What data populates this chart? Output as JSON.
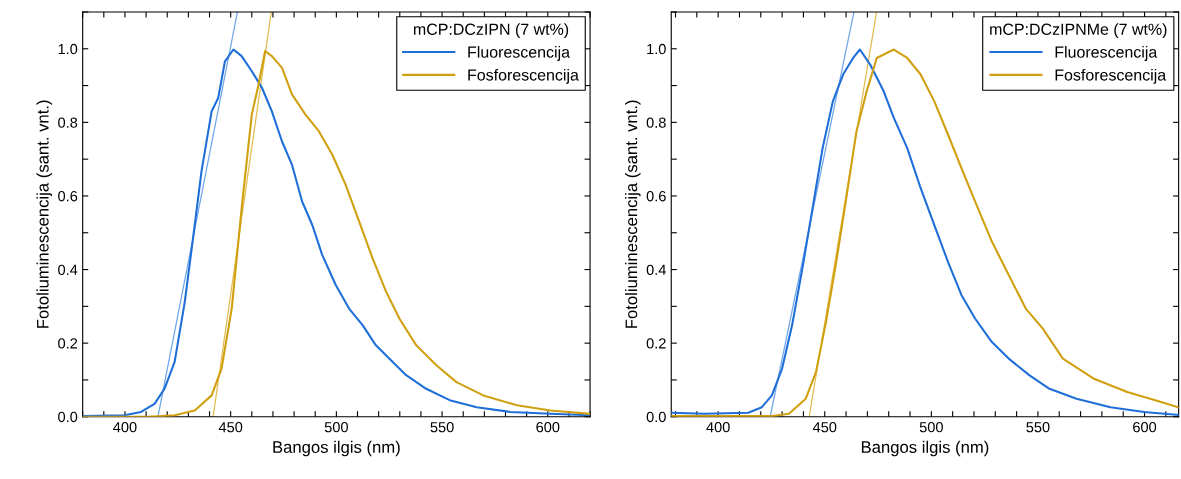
{
  "chart_data": [
    {
      "type": "line",
      "xlabel": "Bangos ilgis (nm)",
      "ylabel": "Fotoliuminescencija (sant. vnt.)",
      "legend_title": "mCP:DCzIPN (7 wt%)",
      "legend": "top right",
      "grid": false,
      "xlim": [
        380,
        620
      ],
      "ylim": [
        0,
        1.1
      ],
      "xticks": [
        {
          "value": 380,
          "label": null
        },
        {
          "value": 390,
          "label": null
        },
        400,
        {
          "value": 410,
          "label": null
        },
        {
          "value": 420,
          "label": null
        },
        {
          "value": 430,
          "label": null
        },
        {
          "value": 440,
          "label": null
        },
        450,
        {
          "value": 460,
          "label": null
        },
        {
          "value": 470,
          "label": null
        },
        {
          "value": 480,
          "label": null
        },
        {
          "value": 490,
          "label": null
        },
        500,
        {
          "value": 510,
          "label": null
        },
        {
          "value": 520,
          "label": null
        },
        {
          "value": 530,
          "label": null
        },
        {
          "value": 540,
          "label": null
        },
        550,
        {
          "value": 560,
          "label": null
        },
        {
          "value": 570,
          "label": null
        },
        {
          "value": 580,
          "label": null
        },
        {
          "value": 590,
          "label": null
        },
        600,
        {
          "value": 610,
          "label": null
        },
        {
          "value": 620,
          "label": null
        }
      ],
      "yticks": [
        {
          "value": 0,
          "label": "0.0"
        },
        {
          "value": 0.1,
          "label": null
        },
        0.2,
        {
          "value": 0.3,
          "label": null
        },
        0.4,
        {
          "value": 0.5,
          "label": null
        },
        0.6,
        {
          "value": 0.7,
          "label": null
        },
        0.8,
        {
          "value": 0.9,
          "label": null
        },
        {
          "value": 1,
          "label": "1.0"
        },
        {
          "value": 1.1,
          "label": null
        }
      ],
      "series": [
        {
          "name": "Fluorescencija",
          "color": "#1f6fd8",
          "x": [
            380,
            399.7,
            407.6,
            414,
            418.7,
            423.5,
            428.3,
            433,
            436.2,
            441,
            444.1,
            447.3,
            451.3,
            455.2,
            460,
            464.8,
            469.5,
            474.3,
            479,
            483.8,
            488.6,
            493.3,
            499.7,
            506,
            512.4,
            518.7,
            525,
            533,
            542.5,
            553.6,
            566.4,
            582.2,
            601.3,
            619.5
          ],
          "values": [
            0.002,
            0.004,
            0.013,
            0.035,
            0.076,
            0.149,
            0.312,
            0.521,
            0.667,
            0.83,
            0.866,
            0.966,
            0.998,
            0.98,
            0.939,
            0.894,
            0.83,
            0.748,
            0.685,
            0.585,
            0.521,
            0.44,
            0.358,
            0.294,
            0.249,
            0.194,
            0.158,
            0.113,
            0.076,
            0.045,
            0.026,
            0.013,
            0.008,
            0.004
          ]
        },
        {
          "name": "Fosforescencija",
          "color": "#d0a010",
          "x": [
            380,
            410.8,
            423.5,
            433,
            441,
            445.7,
            450.5,
            455.2,
            460,
            463.2,
            466.3,
            469.5,
            474.3,
            479,
            485.4,
            491.7,
            498.1,
            504.4,
            510.8,
            517.1,
            523.5,
            529.8,
            537.8,
            547.3,
            556.8,
            569.5,
            585.4,
            601.3,
            619.5
          ],
          "values": [
            0,
            0,
            0.004,
            0.017,
            0.058,
            0.131,
            0.294,
            0.567,
            0.821,
            0.903,
            0.994,
            0.98,
            0.948,
            0.876,
            0.821,
            0.776,
            0.712,
            0.63,
            0.53,
            0.431,
            0.34,
            0.267,
            0.194,
            0.14,
            0.094,
            0.058,
            0.031,
            0.017,
            0.008
          ]
        },
        {
          "color": "#6fa6ea",
          "x": [
            415.6,
            453.2
          ],
          "values": [
            0,
            1.1
          ]
        },
        {
          "color": "#e2bc4e",
          "x": [
            441.7,
            469.2
          ],
          "values": [
            0,
            1.1
          ]
        }
      ]
    },
    {
      "type": "line",
      "xlabel": "Bangos ilgis (nm)",
      "ylabel": "Fotoliuminescencija (sant. vnt.)",
      "legend_title": "mCP:DCzIPNMe (7 wt%)",
      "legend": "top right",
      "grid": false,
      "xlim": [
        378,
        616
      ],
      "ylim": [
        0,
        1.1
      ],
      "xticks": [
        {
          "value": 380,
          "label": null
        },
        {
          "value": 390,
          "label": null
        },
        400,
        {
          "value": 410,
          "label": null
        },
        {
          "value": 420,
          "label": null
        },
        {
          "value": 430,
          "label": null
        },
        {
          "value": 440,
          "label": null
        },
        450,
        {
          "value": 460,
          "label": null
        },
        {
          "value": 470,
          "label": null
        },
        {
          "value": 480,
          "label": null
        },
        {
          "value": 490,
          "label": null
        },
        500,
        {
          "value": 510,
          "label": null
        },
        {
          "value": 520,
          "label": null
        },
        {
          "value": 530,
          "label": null
        },
        {
          "value": 540,
          "label": null
        },
        550,
        {
          "value": 560,
          "label": null
        },
        {
          "value": 570,
          "label": null
        },
        {
          "value": 580,
          "label": null
        },
        {
          "value": 590,
          "label": null
        },
        600,
        {
          "value": 610,
          "label": null
        }
      ],
      "yticks": [
        {
          "value": 0,
          "label": "0.0"
        },
        {
          "value": 0.1,
          "label": null
        },
        0.2,
        {
          "value": 0.3,
          "label": null
        },
        0.4,
        {
          "value": 0.5,
          "label": null
        },
        0.6,
        {
          "value": 0.7,
          "label": null
        },
        0.8,
        {
          "value": 0.9,
          "label": null
        },
        {
          "value": 1,
          "label": "1.0"
        },
        {
          "value": 1.1,
          "label": null
        }
      ],
      "series": [
        {
          "name": "Fluorescencija",
          "color": "#1f6fd8",
          "x": [
            378,
            393.5,
            414.1,
            420.5,
            425.2,
            430,
            434.7,
            439.5,
            444.3,
            449,
            453.8,
            458.6,
            463.3,
            466.5,
            471.3,
            477.6,
            482.4,
            488.7,
            495,
            501.4,
            507.8,
            514.1,
            520.5,
            528.4,
            536.3,
            545.9,
            555.4,
            568.1,
            584,
            599.8,
            615.7
          ],
          "values": [
            0.011,
            0.008,
            0.011,
            0.026,
            0.058,
            0.131,
            0.249,
            0.403,
            0.567,
            0.73,
            0.857,
            0.93,
            0.975,
            0.998,
            0.957,
            0.885,
            0.812,
            0.73,
            0.621,
            0.521,
            0.421,
            0.331,
            0.267,
            0.203,
            0.158,
            0.113,
            0.076,
            0.049,
            0.026,
            0.013,
            0.005
          ]
        },
        {
          "name": "Fosforescencija",
          "color": "#d0a010",
          "x": [
            378,
            425.2,
            433.2,
            441.1,
            445.9,
            450.6,
            455.4,
            460.1,
            464.9,
            469.7,
            474.4,
            482.4,
            488.7,
            495,
            501.4,
            507.8,
            514.1,
            520.5,
            528.4,
            536.3,
            544.3,
            552.2,
            561.7,
            576,
            591.9,
            607.8,
            615.7
          ],
          "values": [
            0.002,
            0.002,
            0.008,
            0.049,
            0.122,
            0.258,
            0.421,
            0.594,
            0.776,
            0.885,
            0.975,
            0.998,
            0.975,
            0.93,
            0.857,
            0.767,
            0.676,
            0.585,
            0.476,
            0.385,
            0.294,
            0.24,
            0.158,
            0.104,
            0.067,
            0.04,
            0.026
          ]
        },
        {
          "color": "#6fa6ea",
          "x": [
            424.4,
            463.7
          ],
          "values": [
            0,
            1.1
          ]
        },
        {
          "color": "#e2bc4e",
          "x": [
            442.7,
            474.3
          ],
          "values": [
            0,
            1.1
          ]
        }
      ]
    }
  ]
}
